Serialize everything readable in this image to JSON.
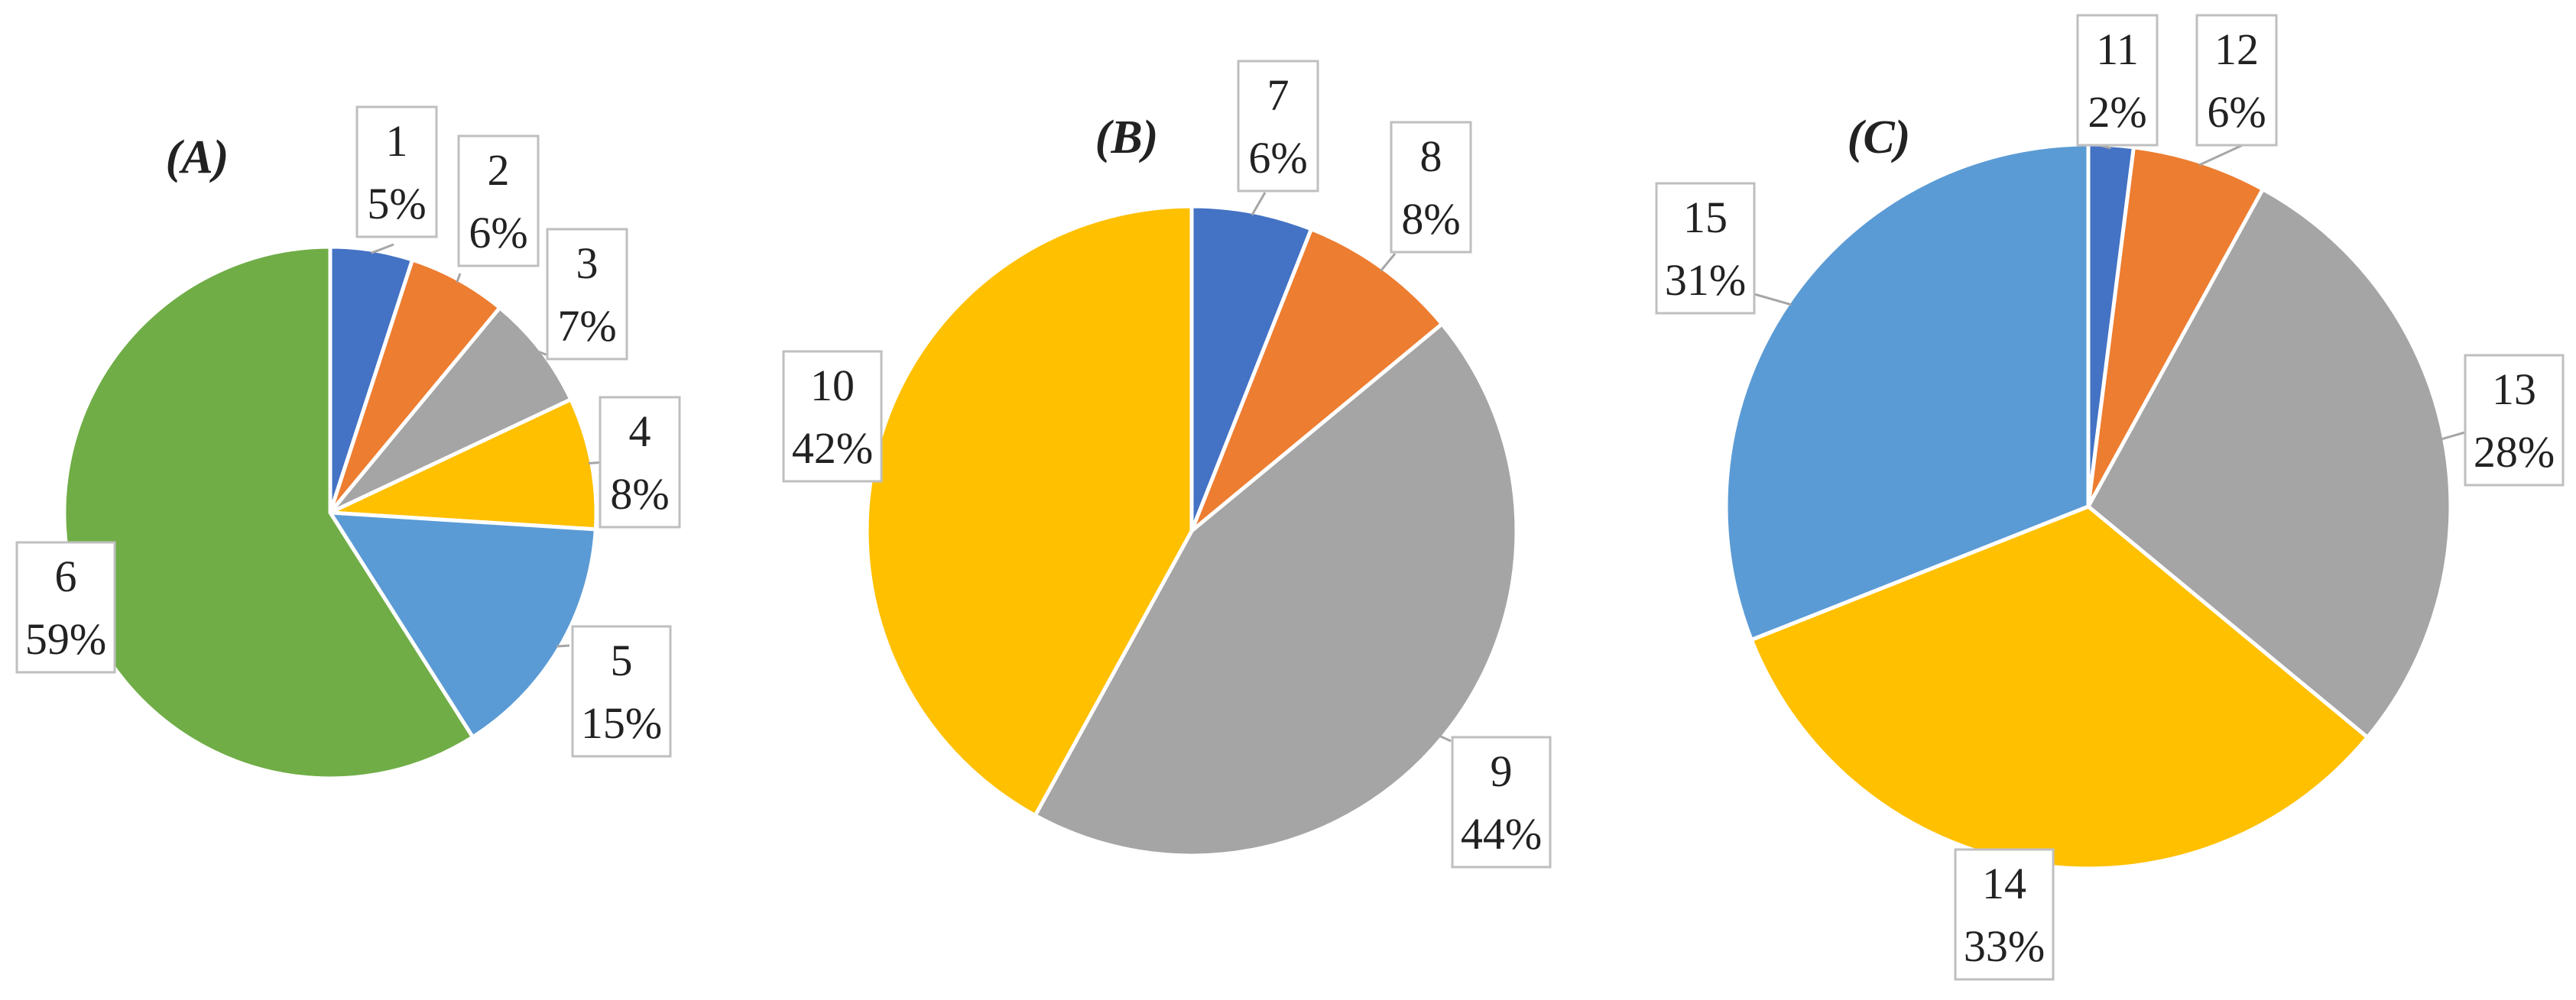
{
  "chart_data": [
    {
      "type": "pie",
      "title": "(A)",
      "slices": [
        {
          "name": "1",
          "value": 5,
          "label": "5%",
          "color": "#4472C4"
        },
        {
          "name": "2",
          "value": 6,
          "label": "6%",
          "color": "#ED7D31"
        },
        {
          "name": "3",
          "value": 7,
          "label": "7%",
          "color": "#A5A5A5"
        },
        {
          "name": "4",
          "value": 8,
          "label": "8%",
          "color": "#FFC000"
        },
        {
          "name": "5",
          "value": 15,
          "label": "15%",
          "color": "#5B9BD5"
        },
        {
          "name": "6",
          "value": 59,
          "label": "59%",
          "color": "#70AD47"
        }
      ],
      "start_angle_deg": 0,
      "direction": "clockwise",
      "data_labels": "outside with leader lines"
    },
    {
      "type": "pie",
      "title": "(B)",
      "slices": [
        {
          "name": "7",
          "value": 6,
          "label": "6%",
          "color": "#4472C4"
        },
        {
          "name": "8",
          "value": 8,
          "label": "8%",
          "color": "#ED7D31"
        },
        {
          "name": "9",
          "value": 44,
          "label": "44%",
          "color": "#A5A5A5"
        },
        {
          "name": "10",
          "value": 42,
          "label": "42%",
          "color": "#FFC000"
        }
      ],
      "start_angle_deg": 0,
      "direction": "clockwise",
      "data_labels": "outside with leader lines"
    },
    {
      "type": "pie",
      "title": "(C)",
      "slices": [
        {
          "name": "11",
          "value": 2,
          "label": "2%",
          "color": "#4472C4"
        },
        {
          "name": "12",
          "value": 6,
          "label": "6%",
          "color": "#ED7D31"
        },
        {
          "name": "13",
          "value": 28,
          "label": "28%",
          "color": "#A5A5A5"
        },
        {
          "name": "14",
          "value": 33,
          "label": "33%",
          "color": "#FFC000"
        },
        {
          "name": "15",
          "value": 31,
          "label": "31%",
          "color": "#5B9BD5"
        }
      ],
      "start_angle_deg": 0,
      "direction": "clockwise",
      "data_labels": "outside with leader lines"
    }
  ]
}
